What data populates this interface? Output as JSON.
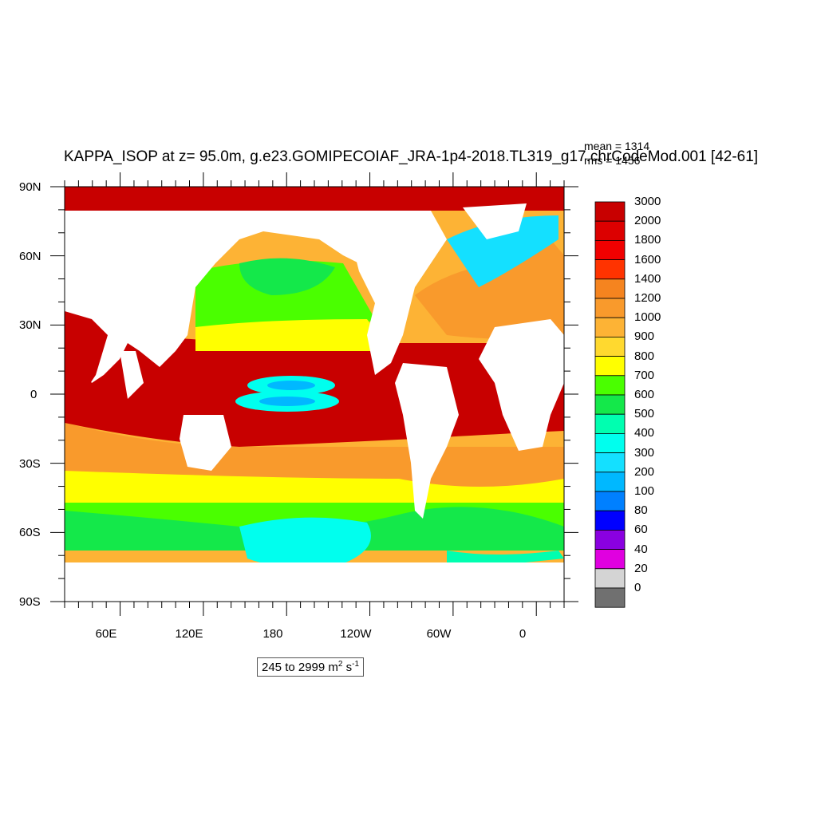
{
  "figure": {
    "title": "KAPPA_ISOP at z=  95.0m, g.e23.GOMIPECOIAF_JRA-1p4-2018.TL319_g17.chrCodeMod.001 [42-61]",
    "mean_text": "mean = 1314",
    "rms_text": "rms = 1456",
    "range_text": "245 to 2999",
    "units_base": "m",
    "units_exp1": "2",
    "units_mid": " s",
    "units_exp2": "-1"
  },
  "map": {
    "projection": "cylindrical equidistant",
    "lon_range": [
      20,
      380
    ],
    "lat_range": [
      -90,
      90
    ],
    "lat_labels": [
      "90N",
      "60N",
      "30N",
      "0",
      "30S",
      "60S",
      "90S"
    ],
    "lon_labels": [
      "60E",
      "120E",
      "180",
      "120W",
      "60W",
      "0"
    ],
    "land_color": "#ffffff"
  },
  "colorbar": {
    "labels": [
      "3000",
      "2000",
      "1800",
      "1600",
      "1400",
      "1200",
      "1000",
      "900",
      "800",
      "700",
      "600",
      "500",
      "400",
      "300",
      "200",
      "100",
      "80",
      "60",
      "40",
      "20",
      "0"
    ],
    "colors": [
      "#c80000",
      "#dc0000",
      "#f00000",
      "#ff3300",
      "#f5841f",
      "#f99a2c",
      "#fdb335",
      "#ffd92f",
      "#ffff00",
      "#4aff00",
      "#14e84a",
      "#00ffb0",
      "#00ffee",
      "#14e0ff",
      "#00b8ff",
      "#0080ff",
      "#0000ff",
      "#8a00e0",
      "#e000e0",
      "#d4d4d4",
      "#707070"
    ]
  }
}
